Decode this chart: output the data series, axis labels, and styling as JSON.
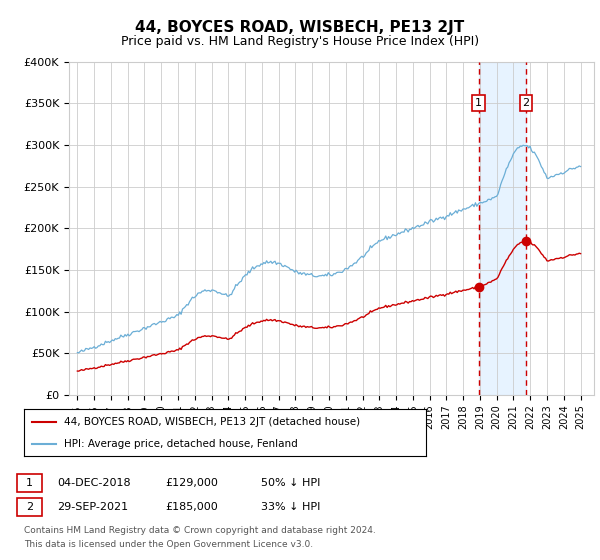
{
  "title": "44, BOYCES ROAD, WISBECH, PE13 2JT",
  "subtitle": "Price paid vs. HM Land Registry's House Price Index (HPI)",
  "title_fontsize": 11,
  "subtitle_fontsize": 9,
  "ylim": [
    0,
    400000
  ],
  "xlim_start": 1994.5,
  "xlim_end": 2025.8,
  "yticks": [
    0,
    50000,
    100000,
    150000,
    200000,
    250000,
    300000,
    350000,
    400000
  ],
  "ytick_labels": [
    "£0",
    "£50K",
    "£100K",
    "£150K",
    "£200K",
    "£250K",
    "£300K",
    "£350K",
    "£400K"
  ],
  "event1_x": 2018.92,
  "event1_y": 129000,
  "event1_label": "04-DEC-2018",
  "event1_price": "£129,000",
  "event1_pct": "50% ↓ HPI",
  "event2_x": 2021.75,
  "event2_y": 185000,
  "event2_label": "29-SEP-2021",
  "event2_price": "£185,000",
  "event2_pct": "33% ↓ HPI",
  "hpi_color": "#6baed6",
  "property_color": "#cc0000",
  "legend_property_label": "44, BOYCES ROAD, WISBECH, PE13 2JT (detached house)",
  "legend_hpi_label": "HPI: Average price, detached house, Fenland",
  "footer1": "Contains HM Land Registry data © Crown copyright and database right 2024.",
  "footer2": "This data is licensed under the Open Government Licence v3.0.",
  "grid_color": "#cccccc",
  "bg_color": "#ffffff",
  "shaded_region_color": "#ddeeff"
}
